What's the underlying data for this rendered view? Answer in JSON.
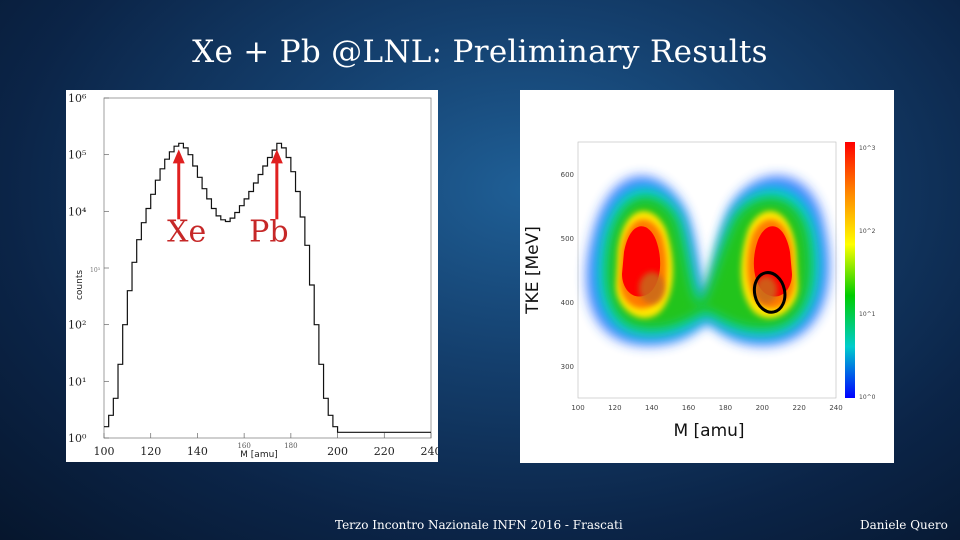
{
  "slide": {
    "title": "Xe + Pb @LNL: Preliminary Results",
    "footer_center": "Terzo Incontro Nazionale INFN 2016 - Frascati",
    "footer_right": "Daniele Quero"
  },
  "colors": {
    "background": "#0b2447",
    "arrow": "#e02020",
    "peak_label": "#c62828",
    "marker": "#000000"
  },
  "chart_data": [
    {
      "type": "line",
      "scale": "log-y",
      "xlabel": "M [amu]",
      "ylabel": "counts",
      "xlim": [
        100,
        240
      ],
      "ylim_log10": [
        0,
        6
      ],
      "x_ticks": [
        "100",
        "120",
        "140",
        "160",
        "180",
        "200",
        "220",
        "240"
      ],
      "y_ticks": [
        "10⁶",
        "10⁵",
        "10⁴",
        "10³",
        "10²",
        "10¹",
        "10⁰"
      ],
      "series": [
        {
          "x": [
            100,
            102,
            104,
            106,
            108,
            110,
            112,
            114,
            116,
            118,
            120,
            122,
            124,
            126,
            128,
            130,
            132,
            134,
            136,
            138,
            140,
            142,
            144,
            146,
            148,
            150,
            152,
            154,
            156,
            158,
            160,
            162,
            164,
            166,
            168,
            170,
            172,
            174,
            176,
            178,
            180,
            182,
            184,
            186,
            188,
            190,
            192,
            194,
            196,
            198,
            200,
            202,
            204,
            206,
            208,
            210,
            212,
            214,
            216,
            218,
            220,
            222,
            224,
            226,
            228,
            230,
            232,
            234,
            236,
            238,
            240
          ],
          "log10_counts": [
            0.2,
            0.4,
            0.7,
            1.3,
            2.0,
            2.6,
            3.1,
            3.5,
            3.8,
            4.05,
            4.3,
            4.55,
            4.75,
            4.92,
            5.05,
            5.15,
            5.2,
            5.12,
            5.0,
            4.8,
            4.6,
            4.4,
            4.22,
            4.05,
            3.92,
            3.85,
            3.82,
            3.88,
            3.98,
            4.1,
            4.22,
            4.35,
            4.5,
            4.65,
            4.8,
            4.95,
            5.08,
            5.2,
            5.12,
            4.95,
            4.7,
            4.35,
            3.9,
            3.4,
            2.7,
            2.0,
            1.3,
            0.7,
            0.4,
            0.2,
            0.1,
            0.1,
            0.1,
            0.1,
            0.1,
            0.1,
            0.1,
            0.1,
            0.1,
            0.1,
            0.1,
            0.1,
            0.1,
            0.1,
            0.1,
            0.1,
            0.1,
            0.1,
            0.1,
            0.1,
            0.1
          ]
        }
      ],
      "annotations": [
        {
          "text": "Xe",
          "x": 132,
          "log10_counts": 5.2
        },
        {
          "text": "Pb",
          "x": 174,
          "log10_counts": 5.2
        }
      ]
    },
    {
      "type": "heatmap",
      "xlabel": "M [amu]",
      "ylabel": "TKE [MeV]",
      "xlim": [
        100,
        240
      ],
      "ylim": [
        250,
        650
      ],
      "x_ticks": [
        "100",
        "120",
        "140",
        "160",
        "180",
        "200",
        "220",
        "240"
      ],
      "y_ticks": [
        "600",
        "500",
        "400",
        "300"
      ],
      "colorbar_ticks": [
        "10^3",
        "10^2",
        "10^1",
        "10^0"
      ],
      "colorscale": [
        "#ff0000",
        "#ff8800",
        "#ffff00",
        "#00cc00",
        "#00cccc",
        "#0000ff"
      ],
      "highlight": {
        "center_x": 204,
        "center_y": 415
      }
    }
  ]
}
